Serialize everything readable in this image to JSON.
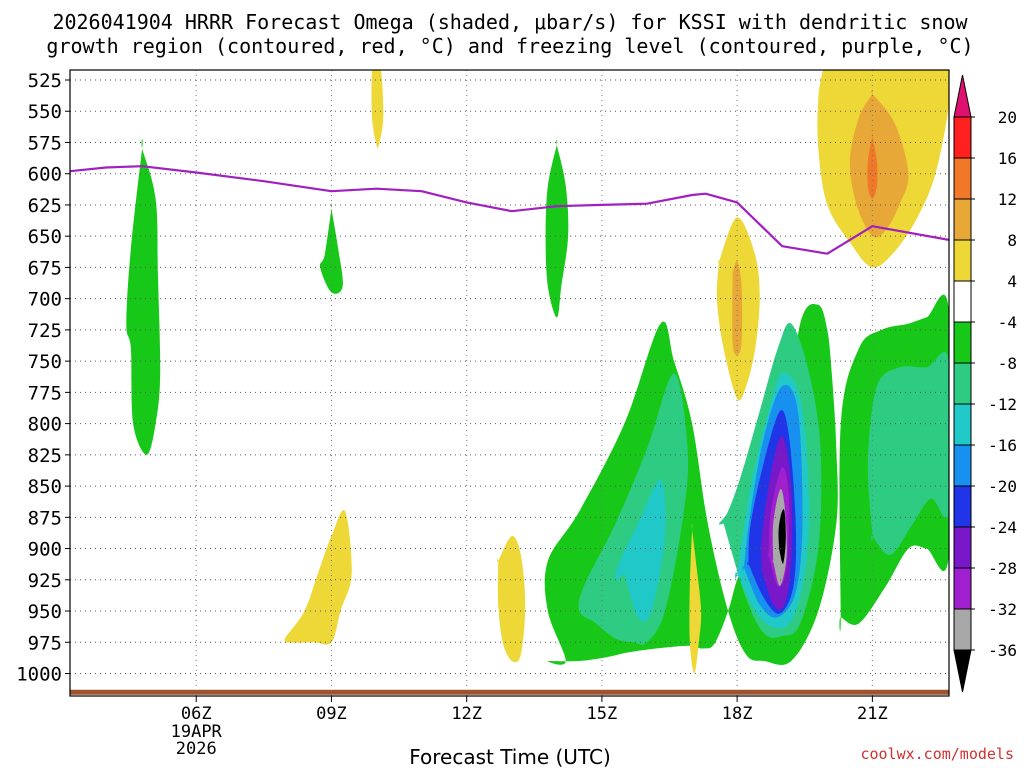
{
  "chart_data": {
    "type": "heatmap",
    "title_line1": "2026041904 HRRR Forecast Omega (shaded, μbar/s) for KSSI with dendritic snow",
    "title_line2": "growth region (contoured, red, °C) and freezing level (contoured, purple, °C)",
    "xlabel": "Forecast Time (UTC)",
    "credit": "coolwx.com/models",
    "x_unit": "hours since 19APR 00Z",
    "x_range": [
      3.2,
      22.7
    ],
    "x_ticks": [
      {
        "hour": 6,
        "label": "06Z",
        "sub1": "19APR",
        "sub2": "2026"
      },
      {
        "hour": 9,
        "label": "09Z"
      },
      {
        "hour": 12,
        "label": "12Z"
      },
      {
        "hour": 15,
        "label": "15Z"
      },
      {
        "hour": 18,
        "label": "18Z"
      },
      {
        "hour": 21,
        "label": "21Z"
      }
    ],
    "y_unit": "pressure (hPa)",
    "y_range": [
      1018,
      517
    ],
    "y_ticks": [
      525,
      550,
      575,
      600,
      625,
      650,
      675,
      700,
      725,
      750,
      775,
      800,
      825,
      850,
      875,
      900,
      925,
      950,
      975,
      1000
    ],
    "colorbar": {
      "levels": [
        "20",
        "16",
        "12",
        "8",
        "4",
        "-4",
        "-8",
        "-12",
        "-16",
        "-20",
        "-24",
        "-28",
        "-32",
        "-36"
      ],
      "colors": [
        "#ff2020",
        "#f07828",
        "#e8a838",
        "#eed838",
        "#ffffff",
        "#18c818",
        "#2ecc82",
        "#20c8c8",
        "#1890f0",
        "#2034e8",
        "#7818c8",
        "#a020d0",
        "#a8a8a8",
        "#000000"
      ],
      "top_arrow": "#e0106e",
      "bottom_arrow": "#000000"
    },
    "freezing_level": {
      "name": "freezing level (0 °C)",
      "color": "#a020c0",
      "x": [
        3.2,
        4.0,
        4.8,
        6.0,
        7.5,
        9.0,
        10.0,
        11.0,
        12.0,
        13.0,
        14.0,
        15.0,
        16.0,
        17.0,
        17.3,
        18.0,
        19.0,
        20.0,
        21.0,
        22.7
      ],
      "y": [
        598,
        595,
        594,
        599,
        606,
        614,
        612,
        614,
        623,
        630,
        626,
        625,
        624,
        617,
        616,
        623,
        658,
        664,
        642,
        653
      ]
    },
    "ground": {
      "color": "#a0522d",
      "top_hpa": 1013,
      "bottom_hpa": 1017
    },
    "shaded_regions": [
      {
        "name": "green-4-early",
        "class": "-4",
        "color": "#18c818",
        "x": [
          4.8,
          5.1,
          5.15,
          5.2,
          5.1,
          4.9,
          4.6,
          4.55,
          4.45,
          4.55,
          4.8
        ],
        "y": [
          580,
          620,
          680,
          760,
          800,
          825,
          800,
          740,
          720,
          660,
          580
        ]
      },
      {
        "name": "green-4-09z",
        "class": "-4",
        "color": "#18c818",
        "x": [
          9.0,
          9.15,
          9.25,
          9.0,
          8.75,
          8.85,
          9.0
        ],
        "y": [
          628,
          660,
          690,
          695,
          675,
          665,
          628
        ]
      },
      {
        "name": "green-4-14z",
        "class": "-4",
        "color": "#18c818",
        "x": [
          14.0,
          14.2,
          14.25,
          14.1,
          14.0,
          13.8,
          13.75,
          13.8,
          14.0
        ],
        "y": [
          577,
          610,
          650,
          690,
          715,
          690,
          650,
          610,
          577
        ]
      },
      {
        "name": "green-4-main",
        "class": "-4",
        "color": "#18c818",
        "x": [
          13.8,
          14.5,
          15.1,
          15.6,
          16.2,
          16.8,
          17.0,
          17.25,
          17.5,
          17.8,
          18.0,
          18.3,
          18.6,
          19.0,
          19.4,
          19.8,
          20.0,
          20.1,
          20.2,
          20.2,
          19.8,
          19.2,
          18.6,
          18.2,
          17.8,
          17.35,
          17.0,
          16.6,
          16.3,
          15.5,
          14.5,
          13.8,
          13.8,
          14.2
        ],
        "y": [
          990,
          990,
          987,
          983,
          980,
          978,
          978,
          980,
          976,
          950,
          925,
          900,
          875,
          820,
          720,
          705,
          725,
          760,
          820,
          880,
          950,
          990,
          990,
          985,
          950,
          880,
          800,
          750,
          720,
          800,
          870,
          910,
          950,
          990
        ]
      },
      {
        "name": "teal-8-west",
        "class": "-8",
        "color": "#2ecc82",
        "x": [
          14.8,
          15.3,
          15.7,
          16.0,
          16.4,
          16.8,
          16.9,
          16.6,
          16.0,
          15.3,
          14.6,
          14.5,
          14.8
        ],
        "y": [
          958,
          972,
          975,
          975,
          950,
          875,
          820,
          760,
          820,
          880,
          930,
          950,
          958
        ]
      },
      {
        "name": "teal-8-east",
        "class": "-8",
        "color": "#2ecc82",
        "x": [
          17.7,
          18.2,
          18.6,
          19.0,
          19.4,
          19.8,
          19.85,
          19.6,
          19.2,
          18.9,
          18.5,
          18.1,
          17.8,
          17.6,
          17.7
        ],
        "y": [
          880,
          940,
          968,
          970,
          960,
          900,
          820,
          760,
          720,
          740,
          790,
          840,
          870,
          880,
          880
        ]
      },
      {
        "name": "cyan-12-west",
        "class": "-12",
        "color": "#20c8c8",
        "x": [
          15.5,
          15.8,
          16.1,
          16.4,
          16.3,
          15.8,
          15.4,
          15.3,
          15.5
        ],
        "y": [
          920,
          955,
          950,
          890,
          845,
          880,
          910,
          925,
          920
        ]
      },
      {
        "name": "cyan-12-east",
        "class": "-12",
        "color": "#20c8c8",
        "x": [
          18.0,
          18.4,
          18.8,
          19.2,
          19.5,
          19.6,
          19.4,
          19.0,
          18.7,
          18.3,
          18.0
        ],
        "y": [
          920,
          950,
          963,
          958,
          920,
          860,
          780,
          760,
          790,
          850,
          920
        ]
      },
      {
        "name": "blue-16",
        "class": "-16",
        "color": "#1890f0",
        "x": [
          18.15,
          18.5,
          18.9,
          19.3,
          19.45,
          19.35,
          19.0,
          18.6,
          18.3,
          18.15
        ],
        "y": [
          915,
          945,
          955,
          935,
          880,
          790,
          770,
          810,
          870,
          915
        ]
      },
      {
        "name": "blue-20",
        "class": "-20",
        "color": "#2034e8",
        "x": [
          18.25,
          18.6,
          18.95,
          19.25,
          19.3,
          19.15,
          18.95,
          18.6,
          18.3,
          18.25
        ],
        "y": [
          912,
          940,
          952,
          930,
          880,
          810,
          790,
          830,
          880,
          912
        ]
      },
      {
        "name": "indigo-24",
        "class": "-24",
        "color": "#7818c8",
        "x": [
          18.55,
          18.8,
          19.05,
          19.2,
          19.2,
          19.0,
          18.75,
          18.55,
          18.55
        ],
        "y": [
          918,
          945,
          945,
          910,
          850,
          810,
          840,
          890,
          918
        ]
      },
      {
        "name": "purple-28",
        "class": "-28",
        "color": "#a020d0",
        "x": [
          18.7,
          18.9,
          19.1,
          19.15,
          19.0,
          18.75,
          18.7
        ],
        "y": [
          905,
          930,
          915,
          860,
          835,
          870,
          905
        ]
      },
      {
        "name": "gray-32",
        "class": "-32",
        "color": "#a8a8a8",
        "x": [
          18.8,
          18.95,
          19.1,
          19.05,
          18.95,
          18.8,
          18.8
        ],
        "y": [
          910,
          930,
          905,
          865,
          853,
          880,
          910
        ]
      },
      {
        "name": "black-36",
        "class": "-36",
        "color": "#000000",
        "x": [
          18.93,
          19.02,
          19.08,
          19.05,
          18.98,
          18.92,
          18.93
        ],
        "y": [
          900,
          912,
          892,
          870,
          872,
          885,
          900
        ]
      },
      {
        "name": "green-4-late",
        "class": "-4",
        "color": "#18c818",
        "x": [
          20.3,
          20.7,
          21.3,
          21.8,
          22.2,
          22.7,
          22.7,
          22.2,
          21.8,
          21.2,
          20.7,
          20.3,
          20.3
        ],
        "y": [
          955,
          960,
          930,
          900,
          900,
          905,
          710,
          715,
          720,
          725,
          740,
          800,
          955
        ]
      },
      {
        "name": "teal-8-late",
        "class": "-8",
        "color": "#2ecc82",
        "x": [
          21.0,
          21.4,
          21.9,
          22.3,
          22.7,
          22.7,
          22.2,
          21.6,
          21.1,
          20.9,
          21.0
        ],
        "y": [
          890,
          905,
          880,
          860,
          870,
          750,
          755,
          755,
          770,
          830,
          890
        ]
      },
      {
        "name": "yellow-4-10z",
        "class": "4",
        "color": "#eed838",
        "x": [
          10.0,
          10.1,
          10.15,
          10.05,
          10.0,
          9.9,
          9.9,
          10.0
        ],
        "y": [
          517,
          517,
          555,
          577,
          577,
          555,
          517,
          517
        ]
      },
      {
        "name": "yellow-4-09z",
        "class": "4",
        "color": "#eed838",
        "x": [
          8.0,
          8.4,
          8.7,
          9.0,
          9.3,
          9.45,
          9.2,
          9.0,
          8.6,
          8.0,
          8.0
        ],
        "y": [
          970,
          950,
          920,
          890,
          870,
          920,
          950,
          975,
          975,
          975,
          970
        ]
      },
      {
        "name": "yellow-4-13z",
        "class": "4",
        "color": "#eed838",
        "x": [
          12.7,
          13.0,
          13.2,
          13.3,
          13.2,
          13.0,
          12.8,
          12.7,
          12.7
        ],
        "y": [
          910,
          890,
          905,
          945,
          985,
          990,
          975,
          945,
          910
        ]
      },
      {
        "name": "yellow-4-17z",
        "class": "4",
        "color": "#eed838",
        "x": [
          17.0,
          17.1,
          17.2,
          17.15,
          17.05,
          16.95,
          16.95,
          17.0
        ],
        "y": [
          885,
          915,
          950,
          975,
          1000,
          975,
          930,
          885
        ]
      },
      {
        "name": "yellow-4-18z",
        "class": "4",
        "color": "#eed838",
        "x": [
          17.6,
          18.0,
          18.4,
          18.5,
          18.4,
          18.2,
          18.0,
          17.7,
          17.55,
          17.6
        ],
        "y": [
          670,
          635,
          665,
          700,
          740,
          770,
          780,
          740,
          700,
          670
        ]
      },
      {
        "name": "gold-8-18z",
        "class": "8",
        "color": "#e8a838",
        "x": [
          17.9,
          18.0,
          18.1,
          18.1,
          18.0,
          17.9,
          17.9
        ],
        "y": [
          680,
          670,
          690,
          735,
          745,
          735,
          680
        ]
      },
      {
        "name": "yellow-4-21z",
        "class": "4",
        "color": "#eed838",
        "x": [
          19.9,
          22.7,
          22.7,
          22.4,
          22.0,
          21.5,
          21.0,
          20.5,
          20.0,
          19.8,
          19.8,
          19.9
        ],
        "y": [
          517,
          517,
          545,
          600,
          635,
          662,
          675,
          655,
          625,
          580,
          540,
          517
        ]
      },
      {
        "name": "gold-8-21z",
        "class": "8",
        "color": "#e8a838",
        "x": [
          21.0,
          21.5,
          21.8,
          21.6,
          21.3,
          21.0,
          20.65,
          20.5,
          20.7,
          21.0
        ],
        "y": [
          536,
          560,
          600,
          625,
          645,
          650,
          625,
          590,
          555,
          536
        ]
      },
      {
        "name": "orange-12-21z",
        "class": "12",
        "color": "#f07828",
        "x": [
          21.0,
          21.1,
          21.1,
          21.0,
          20.9,
          20.9,
          21.0
        ],
        "y": [
          570,
          590,
          610,
          620,
          610,
          590,
          570
        ]
      }
    ]
  }
}
